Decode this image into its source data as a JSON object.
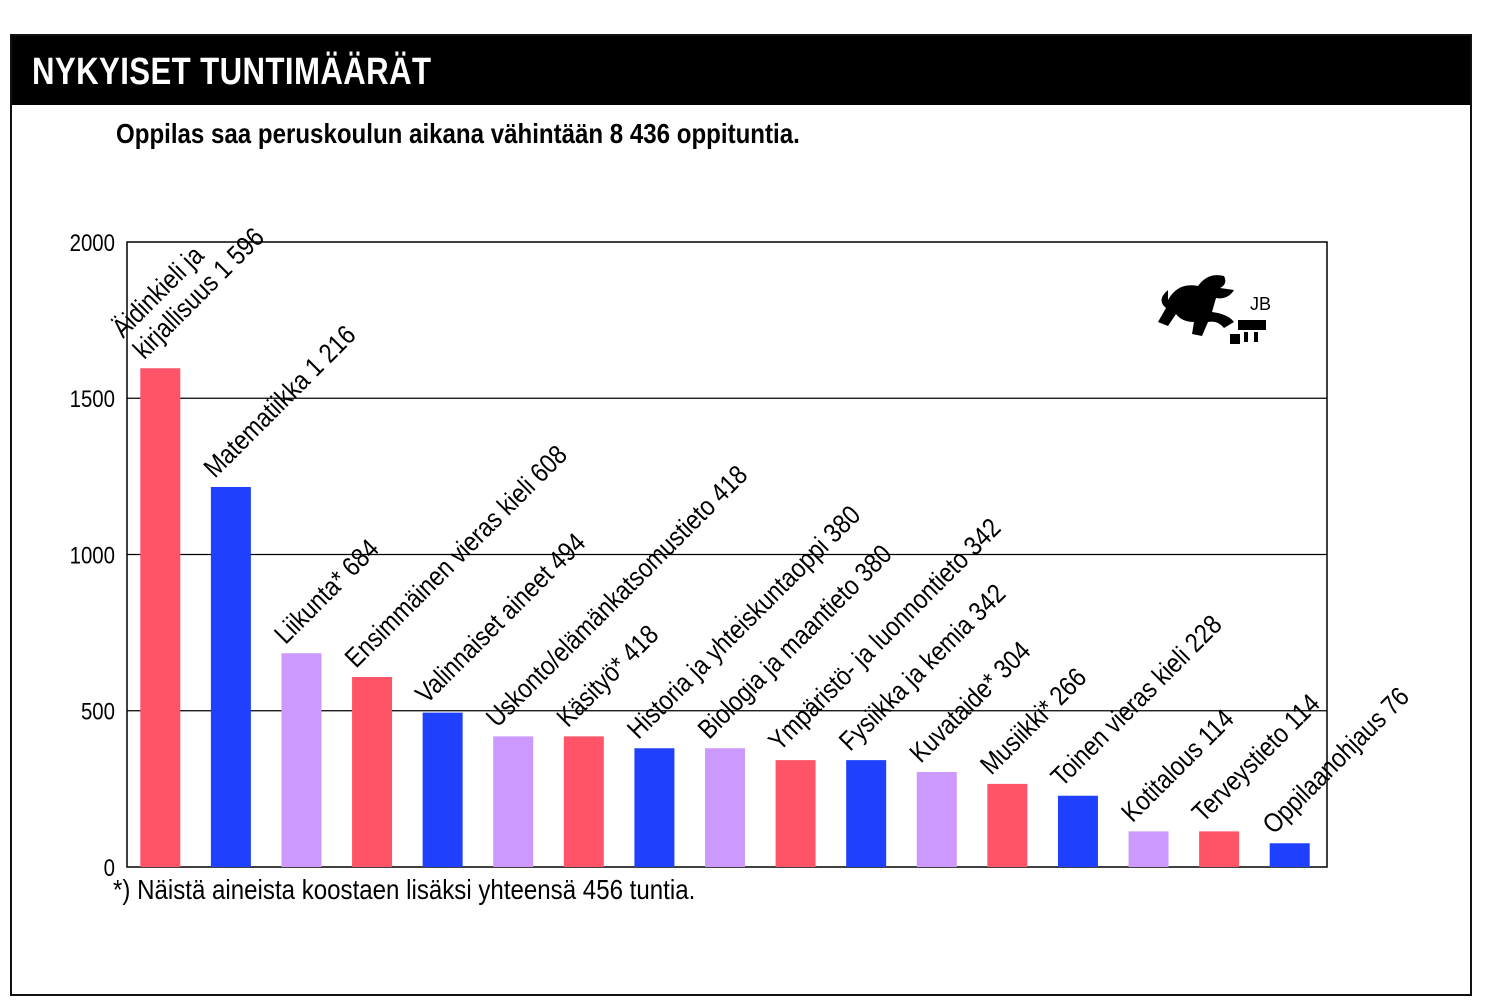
{
  "header": {
    "title": "NYKYISET TUNTIMÄÄRÄT"
  },
  "subtitle": "Oppilas saa peruskoulun aikana vähintään 8 436 oppituntia.",
  "footnote": "*) Näistä aineista koostaen lisäksi yhteensä 456 tuntia.",
  "logo": {
    "text": "JB",
    "icon": "lion-emblem-icon"
  },
  "colors": {
    "red": "#FF5468",
    "blue": "#2040FF",
    "lilac": "#CC99FF",
    "header_bg": "#000000"
  },
  "chart_data": {
    "type": "bar",
    "ylim": [
      0,
      2000
    ],
    "yticks": [
      0,
      500,
      1000,
      1500,
      2000
    ],
    "grid": true,
    "xlabel": "",
    "ylabel": "",
    "categories": [
      "Äidinkieli ja kirjallisuus",
      "Matematiikka",
      "Liikunta*",
      "Ensimmäinen vieras kieli",
      "Valinnaiset aineet",
      "Uskonto/elämänkatsomustieto",
      "Käsityö*",
      "Historia ja yhteiskuntaoppi",
      "Biologia ja maantieto",
      "Ympäristö- ja luonnontieto",
      "Fysiikka ja kemia",
      "Kuvataide*",
      "Musiikki*",
      "Toinen vieras kieli",
      "Kotitalous",
      "Terveystieto",
      "Oppilaanohjaus"
    ],
    "values": [
      1596,
      1216,
      684,
      608,
      494,
      418,
      418,
      380,
      380,
      342,
      342,
      304,
      266,
      228,
      114,
      114,
      76
    ],
    "labels": [
      [
        "Äidinkieli ja",
        "kirjallisuus 1 596"
      ],
      [
        "Matematiikka 1 216"
      ],
      [
        "Liikunta* 684"
      ],
      [
        "Ensimmäinen vieras kieli 608"
      ],
      [
        "Valinnaiset aineet 494"
      ],
      [
        "Uskonto/elämänkatsomustieto 418"
      ],
      [
        "Käsityö* 418"
      ],
      [
        "Historia ja yhteiskuntaoppi 380"
      ],
      [
        "Biologia ja maantieto 380"
      ],
      [
        "Ympäristö- ja luonnontieto 342"
      ],
      [
        "Fysiikka ja kemia 342"
      ],
      [
        "Kuvataide* 304"
      ],
      [
        "Musiikki* 266"
      ],
      [
        "Toinen vieras kieli 228"
      ],
      [
        "Kotitalous 114"
      ],
      [
        "Terveystieto 114"
      ],
      [
        "Oppilaanohjaus 76"
      ]
    ],
    "bar_colors": [
      "red",
      "blue",
      "lilac",
      "red",
      "blue",
      "lilac",
      "red",
      "blue",
      "lilac",
      "red",
      "blue",
      "lilac",
      "red",
      "blue",
      "lilac",
      "red",
      "blue"
    ]
  }
}
